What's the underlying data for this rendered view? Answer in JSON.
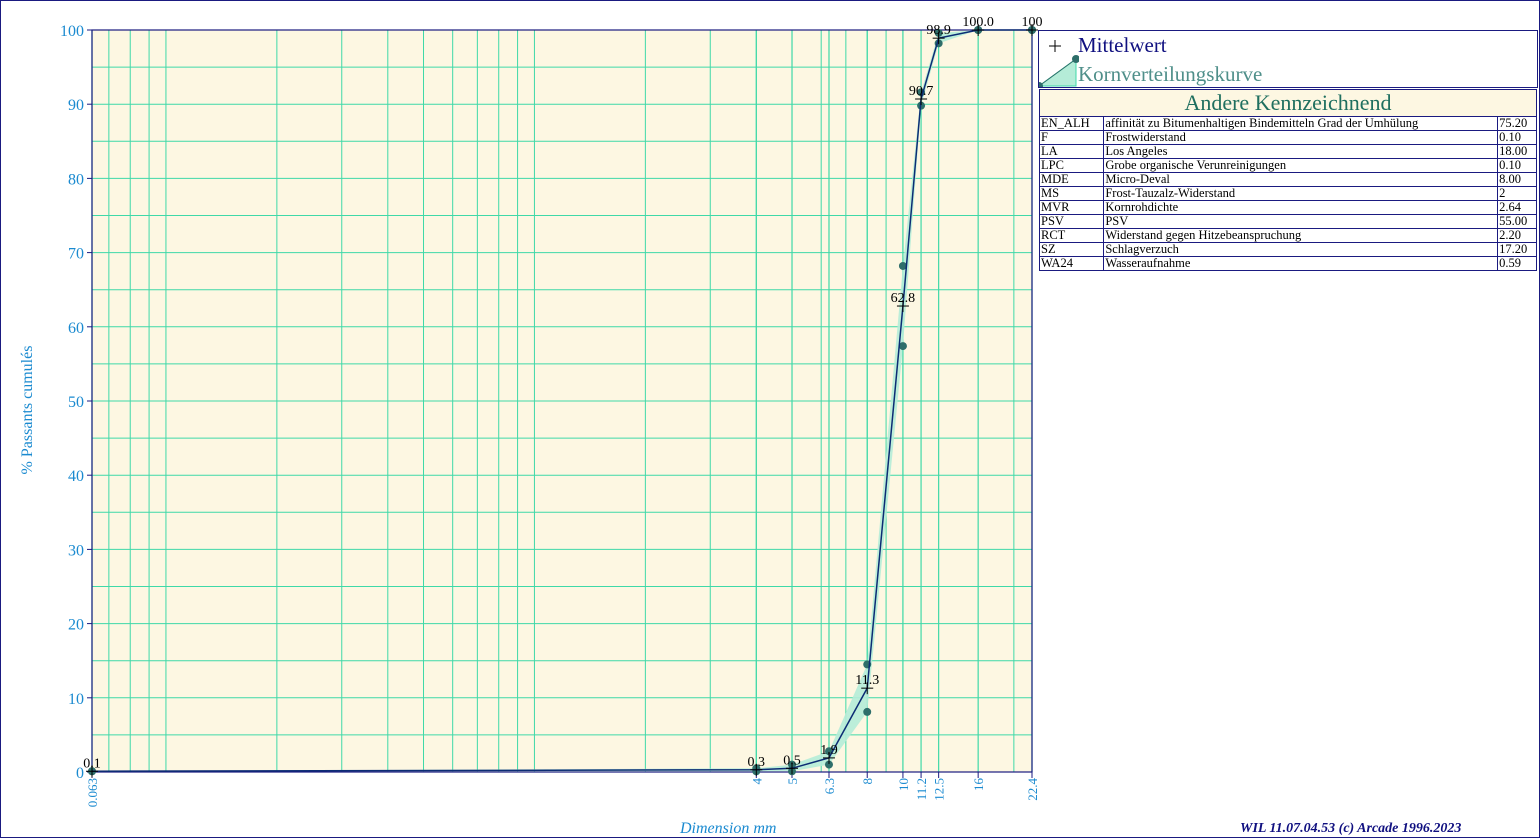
{
  "chart_data": {
    "type": "line",
    "xlabel": "Dimension mm",
    "ylabel": "% Passants cumulés",
    "x_scale": "log",
    "xlim": [
      0.063,
      22.4
    ],
    "ylim": [
      0,
      100
    ],
    "x_ticks": [
      "0.063",
      "4",
      "5",
      "6.3",
      "8",
      "10",
      "11.2",
      "12.5",
      "16",
      "22.4"
    ],
    "y_ticks": [
      0,
      10,
      20,
      30,
      40,
      50,
      60,
      70,
      80,
      90,
      100
    ],
    "series": [
      {
        "name": "Mittelwert",
        "x": [
          0.063,
          4,
          5,
          6.3,
          8,
          10,
          11.2,
          12.5,
          16,
          22.4
        ],
        "y": [
          0.1,
          0.3,
          0.5,
          1.9,
          11.3,
          62.8,
          90.7,
          98.9,
          100.0,
          100
        ],
        "labels": [
          "0.1",
          "0.3",
          "0.5",
          "1.9",
          "11.3",
          "62.8",
          "90.7",
          "98.9",
          "100.0",
          "100"
        ]
      },
      {
        "name": "Kornverteilungskurve",
        "upper": [
          0.1,
          0.5,
          1.0,
          2.8,
          14.5,
          68.2,
          91.6,
          99.6,
          100.0,
          100
        ],
        "lower": [
          0.1,
          0.1,
          0.1,
          1.0,
          8.1,
          57.4,
          89.8,
          98.2,
          100.0,
          100
        ]
      }
    ],
    "legend_placement": "top-right",
    "grid": true,
    "colors": {
      "plot_bg": "#fdf7e2",
      "grid": "#3fd9a8",
      "axis": "#1a1a80",
      "mean_line": "#0c2c74",
      "band": "#b5ecd8",
      "points": "#2e6e6a",
      "tick_text": "#1a8ad0"
    }
  },
  "legend": {
    "mean_label": "Mittelwert",
    "curve_label": "Kornverteilungskurve"
  },
  "properties": {
    "title": "Andere Kennzeichnend",
    "rows": [
      {
        "code": "EN_ALH",
        "name": "affinität zu Bitumenhaltigen Bindemitteln Grad der Umhülung",
        "value": "75.20"
      },
      {
        "code": "F",
        "name": "Frostwiderstand",
        "value": "0.10"
      },
      {
        "code": "LA",
        "name": "Los Angeles",
        "value": "18.00"
      },
      {
        "code": "LPC",
        "name": "Grobe organische Verunreinigungen",
        "value": "0.10"
      },
      {
        "code": "MDE",
        "name": "Micro-Deval",
        "value": "8.00"
      },
      {
        "code": "MS",
        "name": "Frost-Tauzalz-Widerstand",
        "value": "2"
      },
      {
        "code": "MVR",
        "name": "Kornrohdichte",
        "value": "2.64"
      },
      {
        "code": "PSV",
        "name": "PSV",
        "value": "55.00"
      },
      {
        "code": "RCT",
        "name": "Widerstand gegen Hitzebeanspruchung",
        "value": "2.20"
      },
      {
        "code": "SZ",
        "name": "Schlagverzuch",
        "value": "17.20"
      },
      {
        "code": "WA24",
        "name": "Wasseraufnahme",
        "value": "0.59"
      }
    ]
  },
  "footer": "WIL 11.07.04.53 (c) Arcade 1996.2023"
}
